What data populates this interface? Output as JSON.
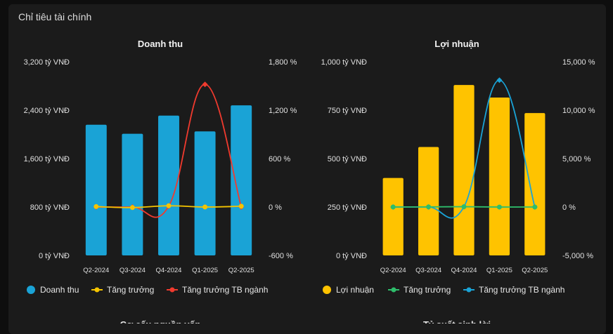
{
  "section_title": "Chỉ tiêu tài chính",
  "footer_titles": [
    "Cơ cấu nguồn vốn",
    "Tỷ suất sinh lời"
  ],
  "chart_data": [
    {
      "type": "bar",
      "title": "Doanh thu",
      "categories": [
        "Q2-2024",
        "Q3-2024",
        "Q4-2024",
        "Q1-2025",
        "Q2-2025"
      ],
      "y_left": {
        "min": 0,
        "max": 3200,
        "ticks": [
          0,
          800,
          1600,
          2400,
          3200
        ],
        "tick_labels": [
          "0 tỷ VNĐ",
          "800 tỷ VNĐ",
          "1,600 tỷ VNĐ",
          "2,400 tỷ VNĐ",
          "3,200 tỷ VNĐ"
        ]
      },
      "y_right": {
        "min": -600,
        "max": 1800,
        "ticks": [
          -600,
          0,
          600,
          1200,
          1800
        ],
        "tick_labels": [
          "-600 %",
          "0 %",
          "600 %",
          "1,200 %",
          "1,800 %"
        ]
      },
      "bar_series": {
        "name": "Doanh thu",
        "color": "#1aa3d6",
        "values": [
          2160,
          2010,
          2310,
          2050,
          2480
        ]
      },
      "line_series": [
        {
          "name": "Tăng trưởng",
          "color": "#f5c400",
          "values": [
            5,
            -7,
            15,
            0,
            10
          ],
          "marker": "circle",
          "axis": "right"
        },
        {
          "name": "Tăng trưởng TB ngành",
          "color": "#f03a2e",
          "values": [
            0,
            0,
            10,
            1520,
            0
          ],
          "marker": "diamond",
          "axis": "right"
        }
      ],
      "legend": "bottom",
      "grid": false
    },
    {
      "type": "bar",
      "title": "Lợi nhuận",
      "categories": [
        "Q2-2024",
        "Q3-2024",
        "Q4-2024",
        "Q1-2025",
        "Q2-2025"
      ],
      "y_left": {
        "min": 0,
        "max": 1000,
        "ticks": [
          0,
          250,
          500,
          750,
          1000
        ],
        "tick_labels": [
          "0 tỷ VNĐ",
          "250 tỷ VNĐ",
          "500 tỷ VNĐ",
          "750 tỷ VNĐ",
          "1,000 tỷ VNĐ"
        ]
      },
      "y_right": {
        "min": -5000,
        "max": 15000,
        "ticks": [
          -5000,
          0,
          5000,
          10000,
          15000
        ],
        "tick_labels": [
          "-5,000 %",
          "0 %",
          "5,000 %",
          "10,000 %",
          "15,000 %"
        ]
      },
      "bar_series": {
        "name": "Lợi nhuận",
        "color": "#ffc300",
        "values": [
          400,
          560,
          880,
          815,
          735
        ]
      },
      "line_series": [
        {
          "name": "Tăng trưởng",
          "color": "#2ebd6b",
          "values": [
            0,
            10,
            30,
            -5,
            0
          ],
          "marker": "circle",
          "axis": "right"
        },
        {
          "name": "Tăng trưởng TB ngành",
          "color": "#1aa3d6",
          "values": [
            0,
            0,
            30,
            13100,
            0
          ],
          "marker": "diamond",
          "axis": "right"
        }
      ],
      "legend": "bottom",
      "grid": false
    }
  ]
}
